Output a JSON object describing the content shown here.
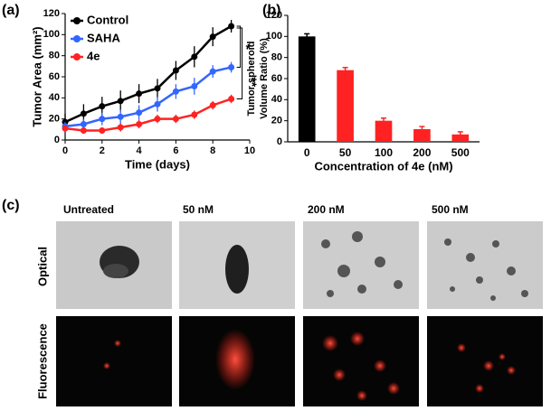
{
  "panel_labels": [
    "(a)",
    "(b)",
    "(c)"
  ],
  "chart_data": [
    {
      "type": "line",
      "xlabel": "Time (days)",
      "ylabel": "Tumor Area (mm²)",
      "x": [
        0,
        1,
        2,
        3,
        4,
        5,
        6,
        7,
        8,
        9
      ],
      "xlim": [
        0,
        10
      ],
      "xticks": [
        0,
        2,
        4,
        6,
        8,
        10
      ],
      "ylim": [
        0,
        120
      ],
      "yticks": [
        0,
        20,
        40,
        60,
        80,
        100,
        120
      ],
      "series": [
        {
          "name": "Control",
          "color": "#000000",
          "values": [
            17,
            25,
            32,
            37,
            44,
            49,
            66,
            79,
            98,
            108
          ],
          "errors": [
            8,
            9,
            9,
            10,
            9,
            9,
            9,
            10,
            9,
            6
          ]
        },
        {
          "name": "SAHA",
          "color": "#3366ff",
          "values": [
            13,
            15,
            20,
            22,
            26,
            34,
            46,
            51,
            65,
            69
          ],
          "errors": [
            4,
            5,
            6,
            7,
            7,
            7,
            7,
            8,
            6,
            5
          ]
        },
        {
          "name": "4e",
          "color": "#ff2222",
          "values": [
            11,
            9,
            9,
            12,
            15,
            20,
            20,
            24,
            33,
            39
          ],
          "errors": [
            3,
            3,
            3,
            4,
            4,
            4,
            4,
            4,
            4,
            4
          ]
        }
      ],
      "annotations": [
        "*",
        "**"
      ]
    },
    {
      "type": "bar",
      "xlabel": "Concentration of 4e (nM)",
      "ylabel": [
        "Tumor spheroid",
        "Volume Ratio (%)"
      ],
      "categories": [
        "0",
        "50",
        "100",
        "200",
        "500"
      ],
      "values": [
        100,
        68,
        20,
        12,
        7
      ],
      "errors": [
        2.5,
        2.5,
        2.5,
        2.5,
        2.5
      ],
      "colors": [
        "#000000",
        "#ff2222",
        "#ff2222",
        "#ff2222",
        "#ff2222"
      ],
      "ylim": [
        0,
        120
      ],
      "yticks": [
        0,
        20,
        40,
        60,
        80,
        100,
        120
      ]
    }
  ],
  "images": {
    "columns": [
      "Untreated",
      "50 nM",
      "200 nM",
      "500 nM"
    ],
    "rows": [
      "Optical",
      "Fluorescence"
    ]
  }
}
